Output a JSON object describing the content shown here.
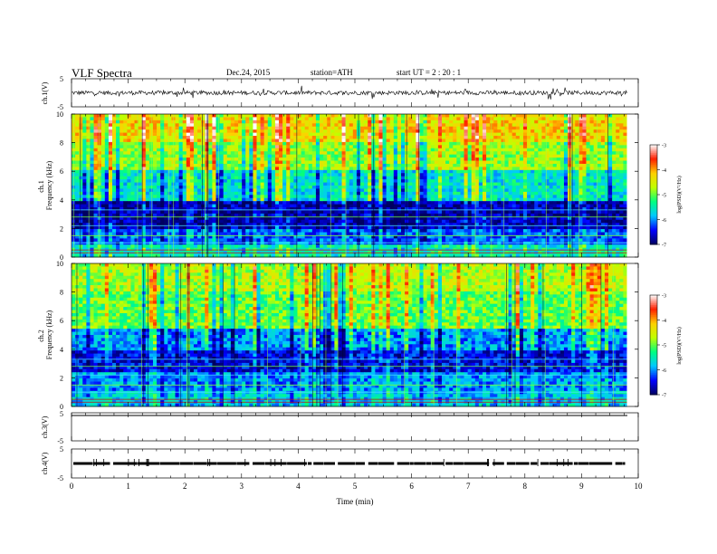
{
  "header": {
    "title": "VLF  Spectra",
    "date": "Dec.24, 2015",
    "station": "station=ATH",
    "start": "start  UT =   2  : 20 : 1"
  },
  "chart_data": [
    {
      "type": "line",
      "panel": "ch1-waveform",
      "ylabel": "ch.1(V)",
      "ytick_labels": [
        "5",
        "-5"
      ],
      "ylim": [
        -5,
        5
      ],
      "baseline_approx": 0,
      "amplitude_approx": 1.5,
      "color": "#000000"
    },
    {
      "type": "heatmap",
      "panel": "ch1-spectrogram",
      "ylabel": "ch.1\nFrequency (kHz)",
      "ytick_labels": [
        "0",
        "2",
        "4",
        "6",
        "8",
        "10"
      ],
      "ylim": [
        0,
        10
      ],
      "colorbar": {
        "label": "log(PSD)(V²/Hz)",
        "tick_labels": [
          "-3",
          "-4",
          "-5",
          "-6",
          "-7"
        ],
        "range": [
          -7,
          -3
        ],
        "colormap": [
          "#000060",
          "#0000ff",
          "#00c8ff",
          "#00ff80",
          "#c0ff00",
          "#ffd000",
          "#ff2000",
          "#ffffff"
        ]
      },
      "bands_logpsd": [
        {
          "from_khz": 0,
          "to_khz": 0.8,
          "value": -5.5
        },
        {
          "from_khz": 0.8,
          "to_khz": 2.0,
          "value": -6.2
        },
        {
          "from_khz": 2.0,
          "to_khz": 4.0,
          "value": -6.7
        },
        {
          "from_khz": 4.0,
          "to_khz": 6.0,
          "value": -5.6
        },
        {
          "from_khz": 6.0,
          "to_khz": 8.0,
          "value": -4.8
        },
        {
          "from_khz": 8.0,
          "to_khz": 10.0,
          "value": -4.3
        }
      ]
    },
    {
      "type": "heatmap",
      "panel": "ch2-spectrogram",
      "ylabel": "ch.2\nFrequency (kHz)",
      "ytick_labels": [
        "0",
        "2",
        "4",
        "6",
        "8",
        "10"
      ],
      "ylim": [
        0,
        10
      ],
      "colorbar": {
        "label": "log(PSD)(V²/Hz)",
        "tick_labels": [
          "-3",
          "-4",
          "-5",
          "-6",
          "-7"
        ],
        "range": [
          -7,
          -3
        ],
        "colormap": [
          "#000060",
          "#0000ff",
          "#00c8ff",
          "#00ff80",
          "#c0ff00",
          "#ffd000",
          "#ff2000",
          "#ffffff"
        ]
      },
      "bands_logpsd": [
        {
          "from_khz": 0,
          "to_khz": 1.0,
          "value": -5.8
        },
        {
          "from_khz": 1.0,
          "to_khz": 2.5,
          "value": -6.0
        },
        {
          "from_khz": 2.5,
          "to_khz": 4.0,
          "value": -6.5
        },
        {
          "from_khz": 4.0,
          "to_khz": 5.5,
          "value": -6.0
        },
        {
          "from_khz": 5.5,
          "to_khz": 8.0,
          "value": -5.0
        },
        {
          "from_khz": 8.0,
          "to_khz": 10.0,
          "value": -4.7
        }
      ]
    },
    {
      "type": "line",
      "panel": "ch3-waveform",
      "ylabel": "ch.3(V)",
      "ytick_labels": [
        "5",
        "-5"
      ],
      "ylim": [
        -5,
        5
      ],
      "baseline_approx": 5,
      "color": "#000000"
    },
    {
      "type": "line",
      "panel": "ch4-waveform",
      "ylabel": "ch.4(V)",
      "ytick_labels": [
        "5",
        "-5"
      ],
      "ylim": [
        -5,
        5
      ],
      "baseline_approx": 0,
      "color": "#000000"
    }
  ],
  "x_axis": {
    "xlabel": "Time  (min)",
    "tick_labels": [
      "0",
      "1",
      "2",
      "3",
      "4",
      "5",
      "6",
      "7",
      "8",
      "9",
      "10"
    ],
    "xlim": [
      0,
      10
    ],
    "data_end_min": 9.8
  }
}
